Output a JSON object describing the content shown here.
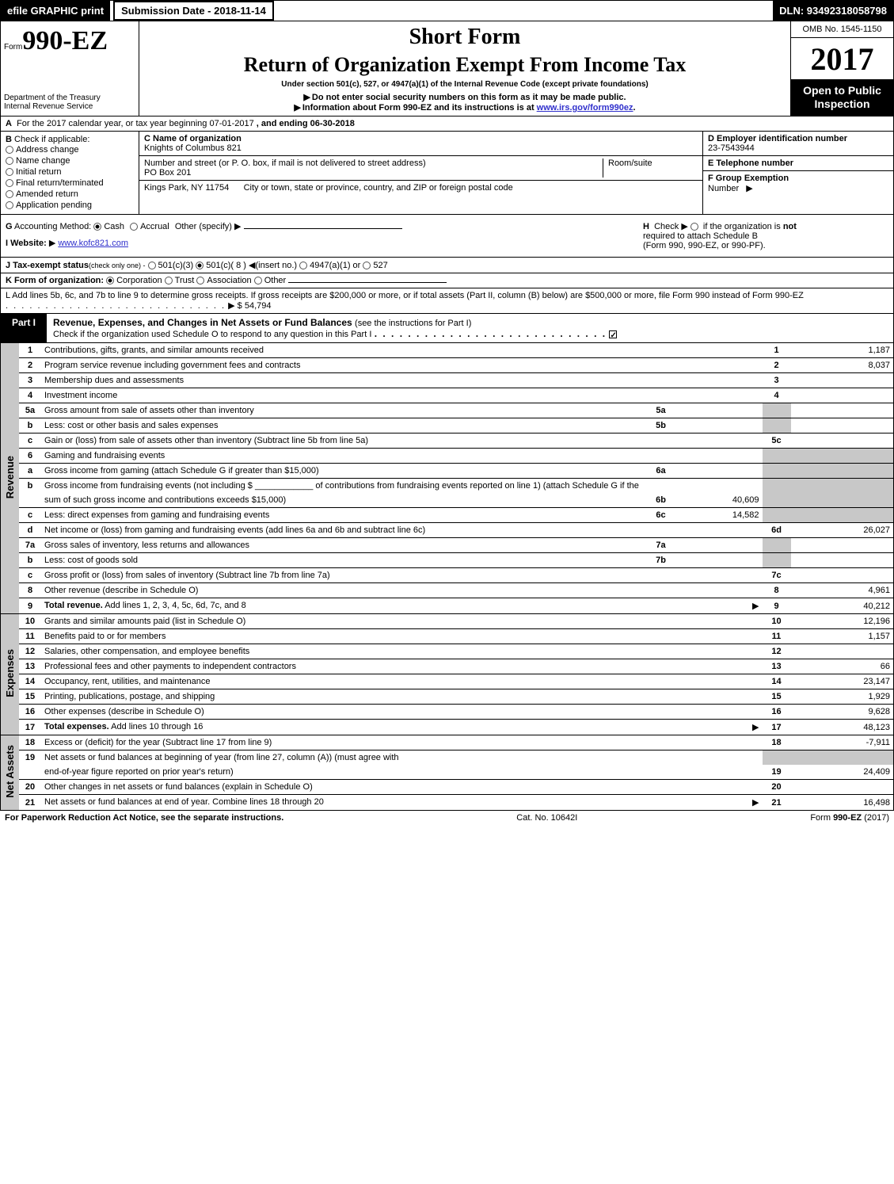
{
  "meta": {
    "efile_label": "efile GRAPHIC print",
    "submission_label": "Submission Date - 2018-11-14",
    "dln_label": "DLN: 93492318058798",
    "omb": "OMB No. 1545-1150",
    "form_prefix": "Form",
    "form_number": "990-EZ",
    "tax_year": "2017",
    "short_form": "Short Form",
    "return_title": "Return of Organization Exempt From Income Tax",
    "under_section": "Under section 501(c), 527, or 4947(a)(1) of the Internal Revenue Code (except private foundations)",
    "warn1": "Do not enter social security numbers on this form as it may be made public.",
    "warn2_a": "Information about Form 990-EZ and its instructions is at ",
    "warn2_link": "www.irs.gov/form990ez",
    "warn2_b": ".",
    "dept": "Department of the Treasury",
    "irs": "Internal Revenue Service",
    "open_public_1": "Open to Public",
    "open_public_2": "Inspection"
  },
  "section_a": {
    "label_a": "A",
    "text": "For the 2017 calendar year, or tax year beginning 07-01-2017",
    "and_ending": ", and ending 06-30-2018"
  },
  "section_b": {
    "label": "B",
    "check_label": "Check if applicable:",
    "items": [
      "Address change",
      "Name change",
      "Initial return",
      "Final return/terminated",
      "Amended return",
      "Application pending"
    ]
  },
  "section_c": {
    "name_label": "C Name of organization",
    "name": "Knights of Columbus 821",
    "street_label": "Number and street (or P. O. box, if mail is not delivered to street address)",
    "street": "PO Box 201",
    "room_label": "Room/suite",
    "city_label": "City or town, state or province, country, and ZIP or foreign postal code",
    "city": "Kings Park, NY  11754"
  },
  "section_d": {
    "d_label": "D Employer identification number",
    "ein": "23-7543944",
    "e_label": "E Telephone number",
    "f_label": "F Group Exemption",
    "f_label2": "Number"
  },
  "gh": {
    "g_label": "G",
    "acct_label": "Accounting Method:",
    "cash": "Cash",
    "accrual": "Accrual",
    "other": "Other (specify)",
    "h_label": "H",
    "h_text1": "Check ▶",
    "h_text2": "if the organization is",
    "h_not": "not",
    "h_text3": "required to attach Schedule B",
    "h_text4": "(Form 990, 990-EZ, or 990-PF).",
    "i_label": "I Website:",
    "website": "www.kofc821.com"
  },
  "j_line": {
    "label": "J Tax-exempt status",
    "small": "(check only one) -",
    "opt1": "501(c)(3)",
    "opt2": "501(c)( 8 )",
    "insert": "(insert no.)",
    "opt3": "4947(a)(1) or",
    "opt4": "527"
  },
  "k_line": {
    "label": "K Form of organization:",
    "corp": "Corporation",
    "trust": "Trust",
    "assoc": "Association",
    "other": "Other"
  },
  "l_line": {
    "text": "L Add lines 5b, 6c, and 7b to line 9 to determine gross receipts. If gross receipts are $200,000 or more, or if total assets (Part II, column (B) below) are $500,000 or more, file Form 990 instead of Form 990-EZ",
    "amount_label": "▶ $ 54,794"
  },
  "part1": {
    "label": "Part I",
    "title": "Revenue, Expenses, and Changes in Net Assets or Fund Balances",
    "sub": "(see the instructions for Part I)",
    "check_text": "Check if the organization used Schedule O to respond to any question in this Part I"
  },
  "sections": {
    "revenue_label": "Revenue",
    "expenses_label": "Expenses",
    "net_assets_label": "Net Assets"
  },
  "lines": [
    {
      "ln": "1",
      "desc": "Contributions, gifts, grants, and similar amounts received",
      "num": "1",
      "amt": "1,187"
    },
    {
      "ln": "2",
      "desc": "Program service revenue including government fees and contracts",
      "num": "2",
      "amt": "8,037"
    },
    {
      "ln": "3",
      "desc": "Membership dues and assessments",
      "num": "3",
      "amt": ""
    },
    {
      "ln": "4",
      "desc": "Investment income",
      "num": "4",
      "amt": ""
    },
    {
      "ln": "5a",
      "desc": "Gross amount from sale of assets other than inventory",
      "mid_ln": "5a",
      "mid_val": "",
      "shade_num": true
    },
    {
      "ln": "b",
      "desc": "Less: cost or other basis and sales expenses",
      "mid_ln": "5b",
      "mid_val": "",
      "shade_num": true
    },
    {
      "ln": "c",
      "desc": "Gain or (loss) from sale of assets other than inventory (Subtract line 5b from line 5a)",
      "num": "5c",
      "amt": ""
    },
    {
      "ln": "6",
      "desc": "Gaming and fundraising events",
      "shade_num": true,
      "shade_amt": true
    },
    {
      "ln": "a",
      "desc": "Gross income from gaming (attach Schedule G if greater than $15,000)",
      "mid_ln": "6a",
      "mid_val": "",
      "shade_num": true,
      "shade_amt": true
    },
    {
      "ln": "b",
      "desc": "Gross income from fundraising events (not including $ ____________ of contributions from fundraising events reported on line 1) (attach Schedule G if the",
      "shade_num": true,
      "shade_amt": true,
      "no_border": true
    },
    {
      "ln": "",
      "desc": "sum of such gross income and contributions exceeds $15,000)",
      "mid_ln": "6b",
      "mid_val": "40,609",
      "shade_num": true,
      "shade_amt": true
    },
    {
      "ln": "c",
      "desc": "Less: direct expenses from gaming and fundraising events",
      "mid_ln": "6c",
      "mid_val": "14,582",
      "shade_num": true,
      "shade_amt": true
    },
    {
      "ln": "d",
      "desc": "Net income or (loss) from gaming and fundraising events (add lines 6a and 6b and subtract line 6c)",
      "num": "6d",
      "amt": "26,027"
    },
    {
      "ln": "7a",
      "desc": "Gross sales of inventory, less returns and allowances",
      "mid_ln": "7a",
      "mid_val": "",
      "shade_num": true
    },
    {
      "ln": "b",
      "desc": "Less: cost of goods sold",
      "mid_ln": "7b",
      "mid_val": "",
      "shade_num": true
    },
    {
      "ln": "c",
      "desc": "Gross profit or (loss) from sales of inventory (Subtract line 7b from line 7a)",
      "num": "7c",
      "amt": ""
    },
    {
      "ln": "8",
      "desc": "Other revenue (describe in Schedule O)",
      "num": "8",
      "amt": "4,961"
    },
    {
      "ln": "9",
      "desc": "Total revenue. Add lines 1, 2, 3, 4, 5c, 6d, 7c, and 8",
      "num": "9",
      "amt": "40,212",
      "bold": true,
      "arrow": true
    }
  ],
  "exp_lines": [
    {
      "ln": "10",
      "desc": "Grants and similar amounts paid (list in Schedule O)",
      "num": "10",
      "amt": "12,196"
    },
    {
      "ln": "11",
      "desc": "Benefits paid to or for members",
      "num": "11",
      "amt": "1,157"
    },
    {
      "ln": "12",
      "desc": "Salaries, other compensation, and employee benefits",
      "num": "12",
      "amt": ""
    },
    {
      "ln": "13",
      "desc": "Professional fees and other payments to independent contractors",
      "num": "13",
      "amt": "66"
    },
    {
      "ln": "14",
      "desc": "Occupancy, rent, utilities, and maintenance",
      "num": "14",
      "amt": "23,147"
    },
    {
      "ln": "15",
      "desc": "Printing, publications, postage, and shipping",
      "num": "15",
      "amt": "1,929"
    },
    {
      "ln": "16",
      "desc": "Other expenses (describe in Schedule O)",
      "num": "16",
      "amt": "9,628"
    },
    {
      "ln": "17",
      "desc": "Total expenses. Add lines 10 through 16",
      "num": "17",
      "amt": "48,123",
      "bold": true,
      "arrow": true
    }
  ],
  "net_lines": [
    {
      "ln": "18",
      "desc": "Excess or (deficit) for the year (Subtract line 17 from line 9)",
      "num": "18",
      "amt": "-7,911"
    },
    {
      "ln": "19",
      "desc": "Net assets or fund balances at beginning of year (from line 27, column (A)) (must agree with",
      "shade_num": true,
      "shade_amt": true,
      "no_border": true
    },
    {
      "ln": "",
      "desc": "end-of-year figure reported on prior year's return)",
      "num": "19",
      "amt": "24,409"
    },
    {
      "ln": "20",
      "desc": "Other changes in net assets or fund balances (explain in Schedule O)",
      "num": "20",
      "amt": ""
    },
    {
      "ln": "21",
      "desc": "Net assets or fund balances at end of year. Combine lines 18 through 20",
      "num": "21",
      "amt": "16,498",
      "arrow": true
    }
  ],
  "footer": {
    "left": "For Paperwork Reduction Act Notice, see the separate instructions.",
    "center": "Cat. No. 10642I",
    "right_a": "Form ",
    "right_b": "990-EZ",
    "right_c": " (2017)"
  },
  "colors": {
    "black": "#000000",
    "white": "#ffffff",
    "shade": "#c8c8c8",
    "link": "#3030cc"
  }
}
